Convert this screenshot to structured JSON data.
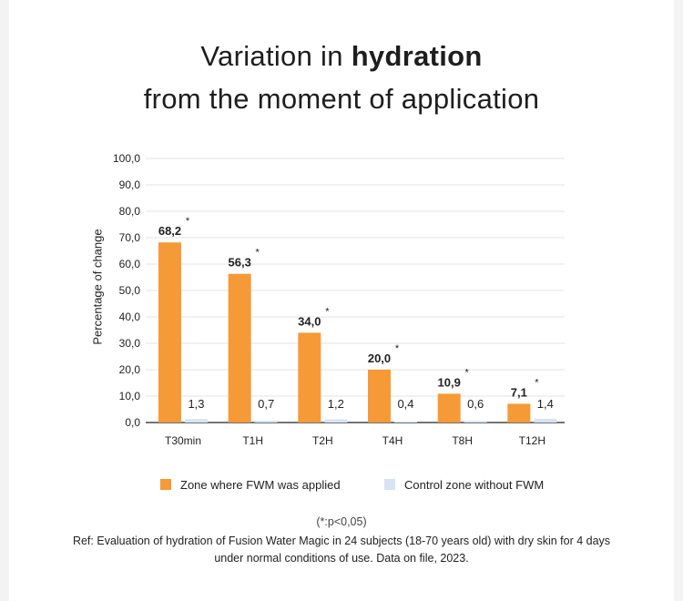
{
  "title": {
    "line1_prefix": "Variation in ",
    "line1_bold": "hydration",
    "line2": "from the moment of application"
  },
  "colors": {
    "applied": "#f59a36",
    "control": "#d5e3f3",
    "grid": "#e3e3e3",
    "axis": "#222222"
  },
  "chart_data": {
    "type": "bar",
    "title": "Variation in hydration from the moment of application",
    "xlabel": "",
    "ylabel": "Percentage of change",
    "ylim": [
      0,
      100
    ],
    "yticks": [
      "0,0",
      "10,0",
      "20,0",
      "30,0",
      "40,0",
      "50,0",
      "60,0",
      "70,0",
      "80,0",
      "90,0",
      "100,0"
    ],
    "categories": [
      "T30min",
      "T1H",
      "T2H",
      "T4H",
      "T8H",
      "T12H"
    ],
    "series": [
      {
        "name": "Zone where FWM was applied",
        "values": [
          68.2,
          56.3,
          34.0,
          20.0,
          10.9,
          7.1
        ],
        "labels": [
          "68,2",
          "56,3",
          "34,0",
          "20,0",
          "10,9",
          "7,1"
        ],
        "significance": [
          "*",
          "*",
          "*",
          "*",
          "*",
          "*"
        ]
      },
      {
        "name": "Control zone without FWM",
        "values": [
          1.3,
          0.7,
          1.2,
          0.4,
          0.6,
          1.4
        ],
        "labels": [
          "1,3",
          "0,7",
          "1,2",
          "0,4",
          "0,6",
          "1,4"
        ]
      }
    ],
    "legend_position": "bottom",
    "grid": true
  },
  "footnotes": {
    "pvalue": "(*:p<0,05)",
    "ref_line1": "Ref: Evaluation of hydration of Fusion Water Magic in 24 subjects (18-70 years old) with dry skin for 4 days",
    "ref_line2": "under normal conditions of use. Data on file, 2023."
  }
}
